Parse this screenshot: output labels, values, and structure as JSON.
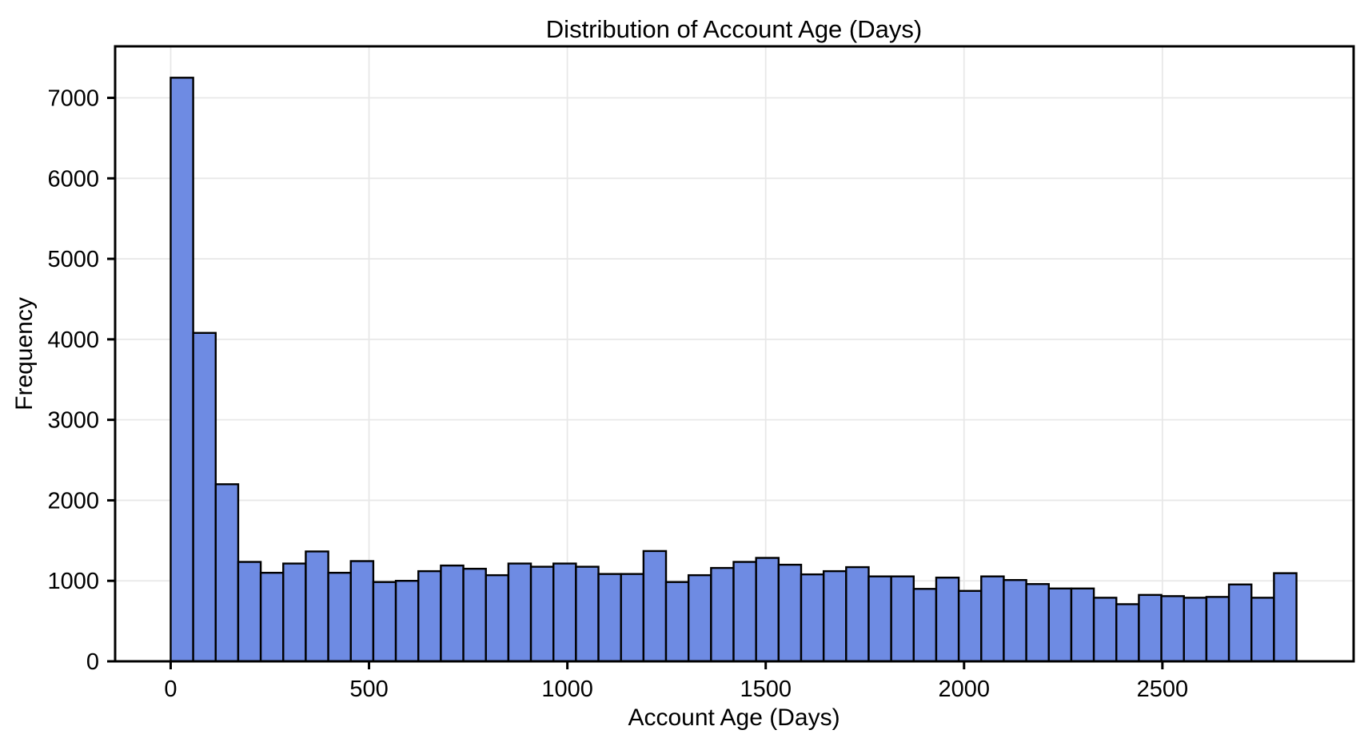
{
  "chart_data": {
    "type": "bar",
    "subtype": "histogram",
    "title": "Distribution of Account Age (Days)",
    "xlabel": "Account Age (Days)",
    "ylabel": "Frequency",
    "bin_start": 0,
    "bin_width": 56.76,
    "frequencies": [
      7250,
      4080,
      2200,
      1235,
      1100,
      1215,
      1365,
      1100,
      1245,
      985,
      1000,
      1120,
      1190,
      1150,
      1070,
      1215,
      1175,
      1215,
      1175,
      1085,
      1085,
      1370,
      985,
      1070,
      1160,
      1235,
      1285,
      1200,
      1080,
      1120,
      1170,
      1055,
      1055,
      900,
      1040,
      875,
      1055,
      1010,
      960,
      905,
      905,
      790,
      710,
      825,
      810,
      790,
      800,
      955,
      790,
      1095
    ],
    "xticks": [
      0,
      500,
      1000,
      1500,
      2000,
      2500
    ],
    "yticks": [
      0,
      1000,
      2000,
      3000,
      4000,
      5000,
      6000,
      7000
    ],
    "xlim": [
      -140,
      2982
    ],
    "ylim": [
      0,
      7640
    ],
    "grid": true,
    "legend": null,
    "colors": {
      "bar_fill": "#6E8BE3",
      "bar_edge": "#000000",
      "grid": "#e8e8e8",
      "spine": "#000000",
      "text": "#000000",
      "background": "#ffffff"
    }
  }
}
